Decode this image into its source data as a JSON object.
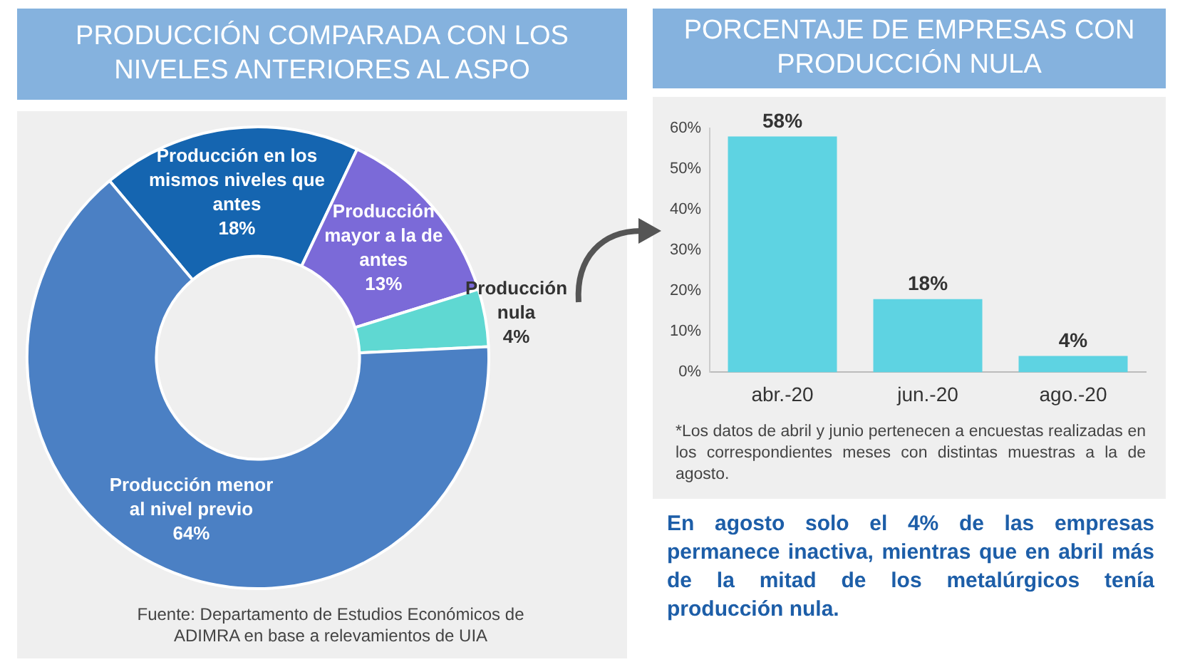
{
  "chart_data": [
    {
      "type": "donut",
      "title": "PRODUCCIÓN COMPARADA CON LOS NIVELES ANTERIORES AL ASPO",
      "categories": [
        "Producción en los mismos niveles que antes",
        "Producción mayor a la de antes",
        "Producción nula",
        "Producción menor al nivel previo"
      ],
      "values": [
        18,
        13,
        4,
        64
      ],
      "value_labels": [
        "18%",
        "13%",
        "4%",
        "64%"
      ],
      "colors": [
        "#1565b0",
        "#7b6ad8",
        "#5fd8d2",
        "#4b80c4"
      ],
      "legend": false,
      "annotations": [
        "Fuente: Departamento de Estudios Económicos de ADIMRA en base a relevamientos de UIA"
      ]
    },
    {
      "type": "bar",
      "title": "PORCENTAJE DE EMPRESAS CON PRODUCCIÓN NULA",
      "categories": [
        "abr.-20",
        "jun.-20",
        "ago.-20"
      ],
      "values": [
        58,
        18,
        4
      ],
      "value_labels": [
        "58%",
        "18%",
        "4%"
      ],
      "color": "#5ed3e2",
      "ylim": [
        0,
        60
      ],
      "yticks": [
        {
          "value": 0,
          "label": "0%"
        },
        {
          "value": 10,
          "label": "10%"
        },
        {
          "value": 20,
          "label": "20%"
        },
        {
          "value": 30,
          "label": "30%"
        },
        {
          "value": 40,
          "label": "40%"
        },
        {
          "value": 50,
          "label": "50%"
        },
        {
          "value": 60,
          "label": "60%"
        }
      ],
      "grid": false,
      "legend": false,
      "annotations": [
        "*Los datos de abril y junio pertenecen a encuestas realizadas en los correspondientes meses con distintas muestras a la de agosto.",
        "En agosto solo el 4% de las empresas permanece inactiva, mientras que en abril más de la mitad de los metalúrgicos tenía producción nula."
      ]
    }
  ]
}
